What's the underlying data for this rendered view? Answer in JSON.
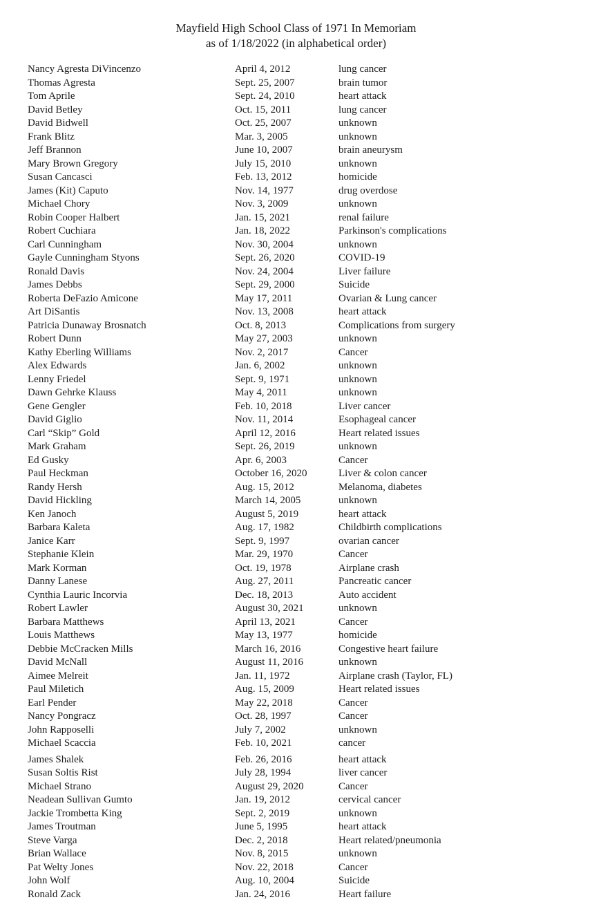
{
  "page": {
    "title_line1": "Mayfield High School Class of 1971 In Memoriam",
    "title_line2": "as of 1/18/2022 (in alphabetical order)"
  },
  "entries": [
    {
      "name": "Nancy Agresta DiVincenzo",
      "date": "April 4, 2012",
      "cause": "lung cancer"
    },
    {
      "name": "Thomas Agresta",
      "date": "Sept. 25, 2007",
      "cause": "brain tumor"
    },
    {
      "name": "Tom Aprile",
      "date": "Sept. 24, 2010",
      "cause": "heart attack"
    },
    {
      "name": "David Betley",
      "date": "Oct. 15, 2011",
      "cause": "lung cancer"
    },
    {
      "name": "David Bidwell",
      "date": "Oct. 25, 2007",
      "cause": "unknown"
    },
    {
      "name": "Frank Blitz",
      "date": "Mar. 3, 2005",
      "cause": "unknown"
    },
    {
      "name": "Jeff Brannon",
      "date": "June 10, 2007",
      "cause": "brain aneurysm"
    },
    {
      "name": "Mary Brown Gregory",
      "date": "July 15, 2010",
      "cause": "unknown"
    },
    {
      "name": "Susan Cancasci",
      "date": "Feb. 13, 2012",
      "cause": "homicide"
    },
    {
      "name": "James (Kit) Caputo",
      "date": "Nov. 14, 1977",
      "cause": "drug overdose"
    },
    {
      "name": "Michael Chory",
      "date": "Nov. 3, 2009",
      "cause": "unknown"
    },
    {
      "name": "Robin Cooper Halbert",
      "date": "Jan. 15, 2021",
      "cause": "renal failure"
    },
    {
      "name": "Robert Cuchiara",
      "date": "Jan. 18, 2022",
      "cause": "Parkinson's complications"
    },
    {
      "name": "Carl Cunningham",
      "date": "Nov. 30, 2004",
      "cause": "unknown"
    },
    {
      "name": "Gayle Cunningham Styons",
      "date": "Sept. 26, 2020",
      "cause": "COVID-19"
    },
    {
      "name": "Ronald Davis",
      "date": "Nov. 24, 2004",
      "cause": "Liver failure"
    },
    {
      "name": "James Debbs",
      "date": "Sept. 29, 2000",
      "cause": "Suicide"
    },
    {
      "name": "Roberta DeFazio Amicone",
      "date": "May 17, 2011",
      "cause": "Ovarian & Lung cancer"
    },
    {
      "name": "Art DiSantis",
      "date": "Nov. 13, 2008",
      "cause": "heart attack"
    },
    {
      "name": "Patricia Dunaway Brosnatch",
      "date": "Oct. 8, 2013",
      "cause": "Complications from surgery"
    },
    {
      "name": "Robert Dunn",
      "date": "May 27, 2003",
      "cause": "unknown"
    },
    {
      "name": "Kathy Eberling Williams",
      "date": "Nov. 2, 2017",
      "cause": "Cancer"
    },
    {
      "name": "Alex Edwards",
      "date": "Jan. 6, 2002",
      "cause": "unknown"
    },
    {
      "name": "Lenny Friedel",
      "date": "Sept. 9, 1971",
      "cause": "unknown"
    },
    {
      "name": "Dawn Gehrke Klauss",
      "date": "May 4, 2011",
      "cause": "unknown"
    },
    {
      "name": "Gene Gengler",
      "date": "Feb. 10, 2018",
      "cause": "Liver cancer"
    },
    {
      "name": "David Giglio",
      "date": "Nov. 11, 2014",
      "cause": "Esophageal cancer"
    },
    {
      "name": "Carl “Skip” Gold",
      "date": "April 12, 2016",
      "cause": "Heart related issues"
    },
    {
      "name": "Mark Graham",
      "date": "Sept. 26, 2019",
      "cause": "unknown"
    },
    {
      "name": "Ed Gusky",
      "date": "Apr. 6, 2003",
      "cause": "Cancer"
    },
    {
      "name": "Paul Heckman",
      "date": "October 16, 2020",
      "cause": "Liver & colon cancer"
    },
    {
      "name": "Randy Hersh",
      "date": "Aug. 15, 2012",
      "cause": "Melanoma, diabetes"
    },
    {
      "name": "David Hickling",
      "date": "March 14, 2005",
      "cause": "unknown"
    },
    {
      "name": "Ken Janoch",
      "date": "August 5, 2019",
      "cause": "heart attack"
    },
    {
      "name": "Barbara Kaleta",
      "date": "Aug. 17, 1982",
      "cause": "Childbirth complications"
    },
    {
      "name": "Janice Karr",
      "date": "Sept. 9, 1997",
      "cause": "ovarian cancer"
    },
    {
      "name": "Stephanie Klein",
      "date": "Mar. 29, 1970",
      "cause": "Cancer"
    },
    {
      "name": "Mark Korman",
      "date": "Oct. 19, 1978",
      "cause": "Airplane crash"
    },
    {
      "name": "Danny Lanese",
      "date": "Aug. 27, 2011",
      "cause": "Pancreatic cancer"
    },
    {
      "name": "Cynthia Lauric Incorvia",
      "date": "Dec. 18, 2013",
      "cause": "Auto accident"
    },
    {
      "name": "Robert Lawler",
      "date": "August 30, 2021",
      "cause": "unknown"
    },
    {
      "name": "Barbara Matthews",
      "date": "April 13, 2021",
      "cause": "Cancer"
    },
    {
      "name": "Louis Matthews",
      "date": "May 13, 1977",
      "cause": "homicide"
    },
    {
      "name": "Debbie McCracken Mills",
      "date": "March 16, 2016",
      "cause": "Congestive heart failure"
    },
    {
      "name": "David McNall",
      "date": "August 11, 2016",
      "cause": "unknown"
    },
    {
      "name": "Aimee Melreit",
      "date": "Jan. 11, 1972",
      "cause": "Airplane crash (Taylor, FL)"
    },
    {
      "name": "Paul Miletich",
      "date": "Aug. 15, 2009",
      "cause": "Heart related issues"
    },
    {
      "name": "Earl Pender",
      "date": "May 22, 2018",
      "cause": "Cancer"
    },
    {
      "name": "Nancy Pongracz",
      "date": "Oct. 28, 1997",
      "cause": "Cancer"
    },
    {
      "name": "John Rapposelli",
      "date": "July 7, 2002",
      "cause": "unknown"
    },
    {
      "name": "Michael Scaccia",
      "date": "Feb. 10, 2021",
      "cause": "cancer"
    },
    {
      "name": "James Shalek",
      "date": "Feb. 26, 2016",
      "cause": "heart attack"
    },
    {
      "name": "Susan Soltis Rist",
      "date": "July 28, 1994",
      "cause": "liver cancer"
    },
    {
      "name": "Michael Strano",
      "date": "August 29, 2020",
      "cause": "Cancer"
    },
    {
      "name": "Neadean Sullivan Gumto",
      "date": "Jan. 19, 2012",
      "cause": "cervical cancer"
    },
    {
      "name": "Jackie Trombetta King",
      "date": "Sept. 2, 2019",
      "cause": "unknown"
    },
    {
      "name": "James Troutman",
      "date": "June 5, 1995",
      "cause": "heart attack"
    },
    {
      "name": "Steve Varga",
      "date": "Dec. 2, 2018",
      "cause": "Heart related/pneumonia"
    },
    {
      "name": "Brian Wallace",
      "date": "Nov. 8, 2015",
      "cause": "unknown"
    },
    {
      "name": "Pat Welty Jones",
      "date": "Nov. 22, 2018",
      "cause": "Cancer"
    },
    {
      "name": "John Wolf",
      "date": "Aug. 10, 2004",
      "cause": "Suicide"
    },
    {
      "name": "Ronald Zack",
      "date": "Jan. 24, 2016",
      "cause": "Heart failure"
    }
  ]
}
